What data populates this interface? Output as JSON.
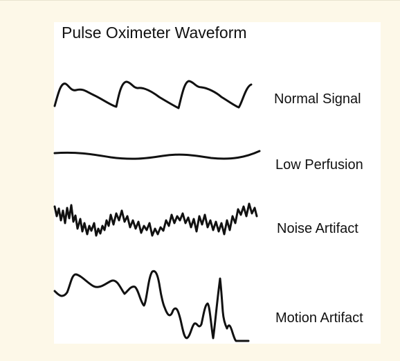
{
  "title": "Pulse Oximeter Waveform",
  "waveforms": [
    {
      "label": "Normal Signal"
    },
    {
      "label": "Low Perfusion"
    },
    {
      "label": "Noise Artifact"
    },
    {
      "label": "Motion Artifact"
    }
  ],
  "colors": {
    "page_background": "#fdf8e8",
    "panel_background": "#ffffff",
    "stroke": "#111111"
  }
}
